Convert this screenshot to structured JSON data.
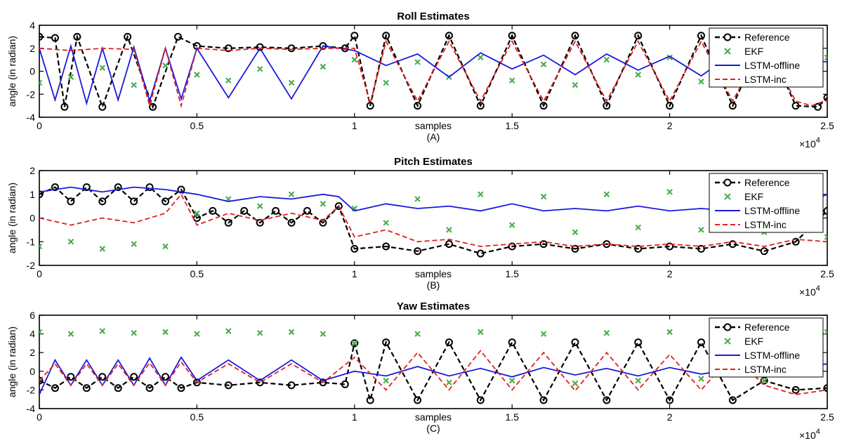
{
  "chart_data": [
    {
      "type": "line",
      "title": "Roll Estimates",
      "xlabel": "samples",
      "ylabel": "angle (in radian)",
      "panel_label": "(A)",
      "x_exponent": "×10",
      "x_exponent_power": "4",
      "xlim": [
        0,
        2.5
      ],
      "ylim": [
        -4,
        4
      ],
      "xticks": [
        "0",
        "0.5",
        "1",
        "1.5",
        "2",
        "2.5"
      ],
      "yticks": [
        "-4",
        "-2",
        "0",
        "2",
        "4"
      ],
      "legend_position": "top-right",
      "series": [
        {
          "name": "Reference",
          "color": "#000000",
          "marker": "o",
          "style": "dashed",
          "x": [
            0,
            0.05,
            0.08,
            0.12,
            0.2,
            0.28,
            0.36,
            0.44,
            0.5,
            0.6,
            0.7,
            0.8,
            0.9,
            0.97,
            1.0,
            1.05,
            1.1,
            1.2,
            1.3,
            1.4,
            1.5,
            1.6,
            1.7,
            1.8,
            1.9,
            2.0,
            2.1,
            2.2,
            2.3,
            2.4,
            2.47,
            2.5
          ],
          "y": [
            3.0,
            2.9,
            -3.1,
            3.0,
            -3.1,
            3.0,
            -3.1,
            3.0,
            2.2,
            2.0,
            2.1,
            2.0,
            2.2,
            2.0,
            3.1,
            -3.0,
            3.1,
            -3.0,
            3.1,
            -3.0,
            3.1,
            -3.0,
            3.1,
            -3.0,
            3.1,
            -3.0,
            3.1,
            -3.0,
            3.1,
            -3.0,
            -3.1,
            -2.3
          ]
        },
        {
          "name": "EKF",
          "color": "#4fad4f",
          "marker": "x",
          "style": "none",
          "x": [
            0,
            0.1,
            0.2,
            0.3,
            0.4,
            0.5,
            0.6,
            0.7,
            0.8,
            0.9,
            1.0,
            1.1,
            1.2,
            1.3,
            1.4,
            1.5,
            1.6,
            1.7,
            1.8,
            1.9,
            2.0,
            2.1,
            2.2,
            2.3,
            2.4,
            2.5
          ],
          "y": [
            -1.0,
            -0.5,
            0.3,
            -1.2,
            0.5,
            -0.3,
            -0.8,
            0.2,
            -1.0,
            0.4,
            1.0,
            -1.0,
            0.8,
            -0.5,
            1.2,
            -0.8,
            0.6,
            -1.2,
            1.0,
            -0.3,
            1.2,
            -0.9,
            0.5,
            -1.0,
            0.8,
            1.2
          ]
        },
        {
          "name": "LSTM-offline",
          "color": "#1a1adb",
          "marker": "",
          "style": "solid",
          "x": [
            0,
            0.05,
            0.1,
            0.15,
            0.2,
            0.25,
            0.3,
            0.35,
            0.4,
            0.45,
            0.5,
            0.6,
            0.7,
            0.8,
            0.9,
            1.0,
            1.1,
            1.2,
            1.3,
            1.4,
            1.5,
            1.6,
            1.7,
            1.8,
            1.9,
            2.0,
            2.1,
            2.2,
            2.3,
            2.4,
            2.5
          ],
          "y": [
            2.0,
            -2.5,
            2.2,
            -2.8,
            2.0,
            -2.5,
            2.1,
            -2.6,
            2.0,
            -2.4,
            2.0,
            -2.3,
            2.0,
            -2.4,
            2.2,
            1.8,
            0.5,
            1.5,
            -0.5,
            1.6,
            0.2,
            1.4,
            -0.3,
            1.5,
            0.1,
            1.3,
            -0.4,
            1.5,
            0.2,
            1.2,
            0.8
          ]
        },
        {
          "name": "LSTM-inc",
          "color": "#e02020",
          "marker": "",
          "style": "dashed",
          "x": [
            0,
            0.1,
            0.2,
            0.3,
            0.35,
            0.4,
            0.45,
            0.5,
            0.6,
            0.7,
            0.8,
            0.9,
            1.0,
            1.05,
            1.1,
            1.2,
            1.3,
            1.4,
            1.5,
            1.6,
            1.7,
            1.8,
            1.9,
            2.0,
            2.1,
            2.2,
            2.3,
            2.4,
            2.45,
            2.5
          ],
          "y": [
            2.0,
            1.8,
            2.0,
            1.9,
            -3.0,
            2.0,
            -3.0,
            2.0,
            1.8,
            2.0,
            1.9,
            2.0,
            2.0,
            -2.8,
            2.6,
            -2.6,
            2.6,
            -2.6,
            2.6,
            -2.6,
            2.6,
            -2.6,
            2.6,
            -2.6,
            2.6,
            -2.6,
            2.6,
            -2.6,
            -3.0,
            -2.5
          ]
        }
      ]
    },
    {
      "type": "line",
      "title": "Pitch Estimates",
      "xlabel": "samples",
      "ylabel": "angle (in radian)",
      "panel_label": "(B)",
      "x_exponent": "×10",
      "x_exponent_power": "4",
      "xlim": [
        0,
        2.5
      ],
      "ylim": [
        -2,
        2
      ],
      "xticks": [
        "0",
        "0.5",
        "1",
        "1.5",
        "2",
        "2.5"
      ],
      "yticks": [
        "-2",
        "-1",
        "0",
        "1",
        "2"
      ],
      "legend_position": "top-right",
      "series": [
        {
          "name": "Reference",
          "color": "#000000",
          "marker": "o",
          "style": "dashed",
          "x": [
            0,
            0.05,
            0.1,
            0.15,
            0.2,
            0.25,
            0.3,
            0.35,
            0.4,
            0.45,
            0.5,
            0.55,
            0.6,
            0.65,
            0.7,
            0.75,
            0.8,
            0.85,
            0.9,
            0.95,
            1.0,
            1.1,
            1.2,
            1.3,
            1.4,
            1.5,
            1.6,
            1.7,
            1.8,
            1.9,
            2.0,
            2.1,
            2.2,
            2.3,
            2.4,
            2.5
          ],
          "y": [
            1.0,
            1.3,
            0.7,
            1.3,
            0.7,
            1.3,
            0.7,
            1.3,
            0.7,
            1.2,
            0.0,
            0.3,
            -0.2,
            0.3,
            -0.2,
            0.3,
            -0.2,
            0.3,
            -0.2,
            0.5,
            -1.3,
            -1.2,
            -1.4,
            -1.1,
            -1.5,
            -1.2,
            -1.1,
            -1.3,
            -1.1,
            -1.3,
            -1.2,
            -1.3,
            -1.1,
            -1.4,
            -1.0,
            0.3
          ]
        },
        {
          "name": "EKF",
          "color": "#4fad4f",
          "marker": "x",
          "style": "none",
          "x": [
            0,
            0.1,
            0.2,
            0.3,
            0.4,
            0.5,
            0.6,
            0.7,
            0.8,
            0.9,
            1.0,
            1.1,
            1.2,
            1.3,
            1.4,
            1.5,
            1.6,
            1.7,
            1.8,
            1.9,
            2.0,
            2.1,
            2.2,
            2.3,
            2.4,
            2.5
          ],
          "y": [
            -1.2,
            -1.0,
            -1.3,
            -1.1,
            -1.2,
            0.2,
            0.8,
            0.5,
            1.0,
            0.6,
            0.4,
            -0.2,
            0.8,
            -0.5,
            1.0,
            -0.3,
            0.9,
            -0.6,
            1.0,
            -0.4,
            1.1,
            -0.5,
            0.9,
            -0.6,
            1.0,
            -0.8
          ]
        },
        {
          "name": "LSTM-offline",
          "color": "#1a1adb",
          "marker": "",
          "style": "solid",
          "x": [
            0,
            0.1,
            0.2,
            0.3,
            0.4,
            0.5,
            0.6,
            0.7,
            0.8,
            0.9,
            0.95,
            1.0,
            1.1,
            1.2,
            1.3,
            1.4,
            1.5,
            1.6,
            1.7,
            1.8,
            1.9,
            2.0,
            2.1,
            2.2,
            2.3,
            2.4,
            2.5
          ],
          "y": [
            1.1,
            1.3,
            1.1,
            1.3,
            1.2,
            1.0,
            0.7,
            0.9,
            0.8,
            1.0,
            0.9,
            0.3,
            0.6,
            0.4,
            0.5,
            0.3,
            0.6,
            0.3,
            0.4,
            0.3,
            0.5,
            0.3,
            0.4,
            0.3,
            0.3,
            0.4,
            1.0
          ]
        },
        {
          "name": "LSTM-inc",
          "color": "#e02020",
          "marker": "",
          "style": "dashed",
          "x": [
            0,
            0.1,
            0.2,
            0.3,
            0.4,
            0.45,
            0.5,
            0.6,
            0.7,
            0.8,
            0.9,
            0.95,
            1.0,
            1.1,
            1.2,
            1.3,
            1.4,
            1.5,
            1.6,
            1.7,
            1.8,
            1.9,
            2.0,
            2.1,
            2.2,
            2.3,
            2.4,
            2.5
          ],
          "y": [
            0.0,
            -0.3,
            0.0,
            -0.2,
            0.2,
            1.0,
            -0.3,
            0.2,
            -0.1,
            0.2,
            -0.1,
            0.5,
            -0.8,
            -0.5,
            -1.0,
            -0.9,
            -1.2,
            -1.1,
            -1.0,
            -1.2,
            -1.1,
            -1.2,
            -1.1,
            -1.2,
            -1.0,
            -1.2,
            -0.9,
            -1.0
          ]
        }
      ]
    },
    {
      "type": "line",
      "title": "Yaw Estimates",
      "xlabel": "samples",
      "ylabel": "angle (in radian)",
      "panel_label": "(C)",
      "x_exponent": "×10",
      "x_exponent_power": "4",
      "xlim": [
        0,
        2.5
      ],
      "ylim": [
        -4,
        6
      ],
      "xticks": [
        "0",
        "0.5",
        "1",
        "1.5",
        "2",
        "2.5"
      ],
      "yticks": [
        "-4",
        "-2",
        "0",
        "2",
        "4",
        "6"
      ],
      "legend_position": "top-right",
      "series": [
        {
          "name": "Reference",
          "color": "#000000",
          "marker": "o",
          "style": "dashed",
          "x": [
            0,
            0.05,
            0.1,
            0.15,
            0.2,
            0.25,
            0.3,
            0.35,
            0.4,
            0.45,
            0.5,
            0.6,
            0.7,
            0.8,
            0.9,
            0.97,
            1.0,
            1.05,
            1.1,
            1.2,
            1.3,
            1.4,
            1.5,
            1.6,
            1.7,
            1.8,
            1.9,
            2.0,
            2.1,
            2.2,
            2.3,
            2.4,
            2.5
          ],
          "y": [
            -1.0,
            -1.8,
            -0.6,
            -1.8,
            -0.6,
            -1.8,
            -0.6,
            -1.8,
            -0.6,
            -1.8,
            -1.2,
            -1.5,
            -1.2,
            -1.5,
            -1.2,
            -1.4,
            3.0,
            -3.1,
            3.1,
            -3.1,
            3.1,
            -3.1,
            3.1,
            -3.1,
            3.1,
            -3.1,
            3.1,
            -3.1,
            3.1,
            -3.1,
            -1.0,
            -2.0,
            -1.8
          ]
        },
        {
          "name": "EKF",
          "color": "#4fad4f",
          "marker": "x",
          "style": "none",
          "x": [
            0,
            0.1,
            0.2,
            0.3,
            0.4,
            0.5,
            0.6,
            0.7,
            0.8,
            0.9,
            1.0,
            1.1,
            1.2,
            1.3,
            1.4,
            1.5,
            1.6,
            1.7,
            1.8,
            1.9,
            2.0,
            2.1,
            2.2,
            2.3,
            2.4,
            2.5
          ],
          "y": [
            4.2,
            4.0,
            4.3,
            4.1,
            4.2,
            4.0,
            4.3,
            4.1,
            4.2,
            4.0,
            3.0,
            -1.0,
            4.0,
            -1.2,
            4.2,
            -1.0,
            4.0,
            -1.3,
            4.1,
            -1.0,
            4.2,
            -0.8,
            4.0,
            -1.0,
            3.8,
            4.2
          ]
        },
        {
          "name": "LSTM-offline",
          "color": "#1a1adb",
          "marker": "",
          "style": "solid",
          "x": [
            0,
            0.05,
            0.1,
            0.15,
            0.2,
            0.25,
            0.3,
            0.35,
            0.4,
            0.45,
            0.5,
            0.6,
            0.7,
            0.8,
            0.9,
            1.0,
            1.1,
            1.2,
            1.3,
            1.4,
            1.5,
            1.6,
            1.7,
            1.8,
            1.9,
            2.0,
            2.1,
            2.2,
            2.3,
            2.4,
            2.5
          ],
          "y": [
            -2.5,
            1.2,
            -1.5,
            1.2,
            -1.5,
            1.2,
            -1.5,
            1.4,
            -1.5,
            1.5,
            -1.0,
            1.2,
            -1.0,
            1.2,
            -1.0,
            0.0,
            -0.5,
            0.5,
            -0.5,
            0.3,
            -0.6,
            0.4,
            -0.4,
            0.3,
            -0.5,
            0.4,
            -0.3,
            0.2,
            -0.4,
            0.3,
            0.8
          ]
        },
        {
          "name": "LSTM-inc",
          "color": "#e02020",
          "marker": "",
          "style": "dashed",
          "x": [
            0,
            0.05,
            0.1,
            0.15,
            0.2,
            0.25,
            0.3,
            0.35,
            0.4,
            0.45,
            0.5,
            0.6,
            0.7,
            0.8,
            0.9,
            1.0,
            1.1,
            1.2,
            1.3,
            1.4,
            1.5,
            1.6,
            1.7,
            1.8,
            1.9,
            2.0,
            2.1,
            2.2,
            2.3,
            2.4,
            2.5
          ],
          "y": [
            -1.0,
            0.8,
            -1.5,
            0.8,
            -1.5,
            0.8,
            -1.5,
            0.9,
            -1.5,
            1.0,
            -1.2,
            0.8,
            -1.2,
            0.8,
            -1.2,
            1.5,
            -2.0,
            2.0,
            -2.0,
            2.2,
            -2.0,
            2.0,
            -2.1,
            2.0,
            -2.0,
            1.8,
            -2.0,
            1.8,
            -1.5,
            -2.5,
            -2.0
          ]
        }
      ]
    }
  ]
}
